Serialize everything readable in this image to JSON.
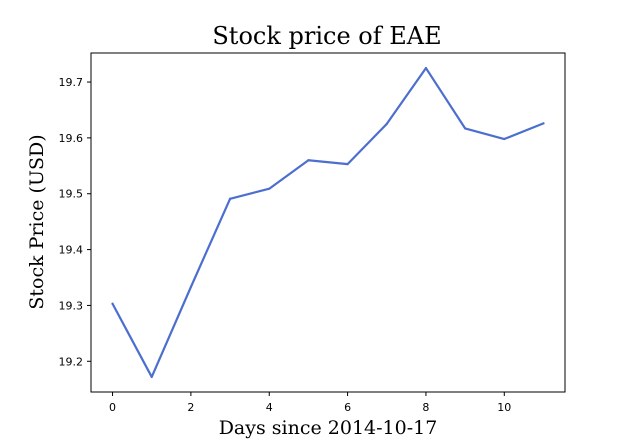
{
  "chart_data": {
    "type": "line",
    "title": "Stock price of EAE",
    "xlabel": "Days since 2014-10-17",
    "ylabel": "Stock Price (USD)",
    "x": [
      0,
      1,
      2,
      3,
      4,
      5,
      6,
      7,
      8,
      9,
      10,
      11
    ],
    "series": [
      {
        "values": [
          19.303,
          19.172,
          19.333,
          19.491,
          19.509,
          19.56,
          19.553,
          19.625,
          19.725,
          19.617,
          19.598,
          19.626
        ],
        "color": "#4c6fcf"
      }
    ],
    "xlim": [
      -0.55,
      11.55
    ],
    "ylim": [
      19.145,
      19.752
    ],
    "xticks": [
      0,
      2,
      4,
      6,
      8,
      10
    ],
    "yticks": [
      19.2,
      19.3,
      19.4,
      19.5,
      19.6,
      19.7
    ],
    "xtick_labels": [
      "0",
      "2",
      "4",
      "6",
      "8",
      "10"
    ],
    "ytick_labels": [
      "19.2",
      "19.3",
      "19.4",
      "19.5",
      "19.6",
      "19.7"
    ],
    "grid": false,
    "legend": false
  }
}
